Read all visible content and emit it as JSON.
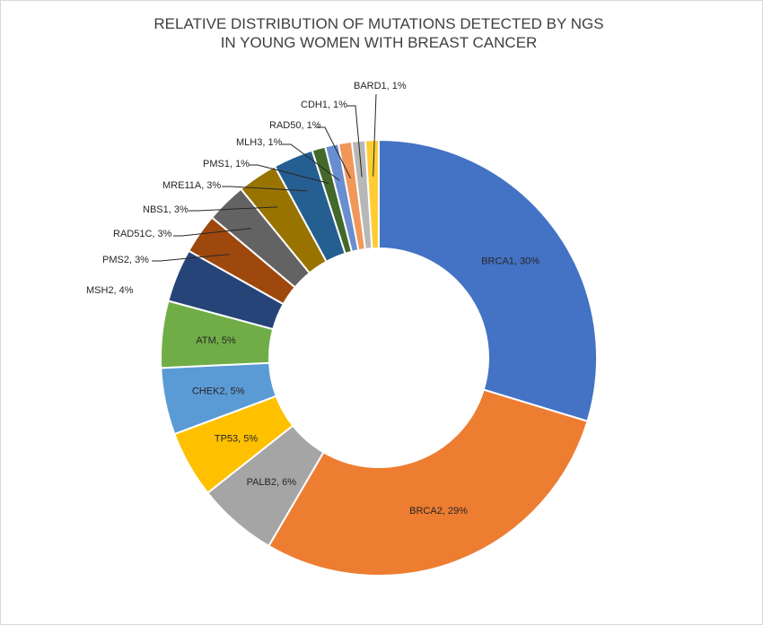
{
  "chart_data": {
    "type": "pie",
    "variant": "doughnut",
    "title_lines": [
      "RELATIVE DISTRIBUTION OF MUTATIONS DETECTED BY NGS",
      "IN YOUNG WOMEN WITH BREAST CANCER"
    ],
    "slices": [
      {
        "label": "BRCA1, 30%",
        "value": 30,
        "color": "#4472C4"
      },
      {
        "label": "BRCA2, 29%",
        "value": 29,
        "color": "#ED7D31"
      },
      {
        "label": "PALB2, 6%",
        "value": 6,
        "color": "#A5A5A5"
      },
      {
        "label": "TP53, 5%",
        "value": 5,
        "color": "#FFC000"
      },
      {
        "label": "CHEK2, 5%",
        "value": 5,
        "color": "#5B9BD5"
      },
      {
        "label": "ATM, 5%",
        "value": 5,
        "color": "#70AD47"
      },
      {
        "label": "MSH2, 4%",
        "value": 4,
        "color": "#264478"
      },
      {
        "label": "PMS2, 3%",
        "value": 3,
        "color": "#9E480E"
      },
      {
        "label": "RAD51C, 3%",
        "value": 3,
        "color": "#636363"
      },
      {
        "label": "NBS1, 3%",
        "value": 3,
        "color": "#997300"
      },
      {
        "label": "MRE11A, 3%",
        "value": 3,
        "color": "#255E91"
      },
      {
        "label": "PMS1, 1%",
        "value": 1,
        "color": "#43682B"
      },
      {
        "label": "MLH3, 1%",
        "value": 1,
        "color": "#698ED0"
      },
      {
        "label": "RAD50, 1%",
        "value": 1,
        "color": "#F1975A"
      },
      {
        "label": "CDH1, 1%",
        "value": 1,
        "color": "#B7B7B7"
      },
      {
        "label": "BARD1, 1%",
        "value": 1,
        "color": "#FFCD33"
      }
    ]
  }
}
